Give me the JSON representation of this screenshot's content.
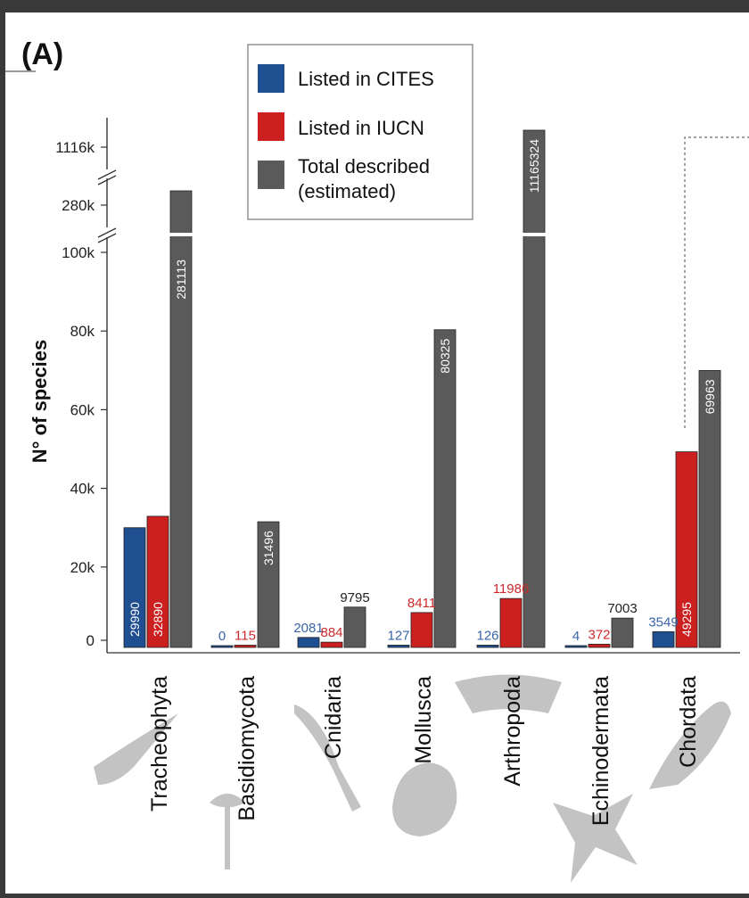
{
  "panel_label": "(A)",
  "colors": {
    "cites": "#1f4e91",
    "iucn": "#cc1f1f",
    "total": "#5a5a5a",
    "cites_text": "#3a64a8",
    "iucn_text": "#cc2a2a"
  },
  "legend": [
    {
      "key": "cites",
      "label": "Listed in CITES"
    },
    {
      "key": "iucn",
      "label": "Listed in IUCN"
    },
    {
      "key": "total",
      "label": "Total described",
      "label2": "(estimated)"
    }
  ],
  "chart_data": {
    "type": "bar",
    "ylabel": "N° of species",
    "y_ticks": [
      "0",
      "20k",
      "40k",
      "60k",
      "80k",
      "100k",
      "280k",
      "1116k"
    ],
    "ylim": [
      0,
      105000
    ],
    "axis_breaks": [
      "100k–280k",
      "280k–1116k"
    ],
    "categories": [
      "Tracheophyta",
      "Basidiomycota",
      "Cnidaria",
      "Mollusca",
      "Arthropoda",
      "Echinodermata",
      "Chordata"
    ],
    "series": [
      {
        "name": "Listed in CITES",
        "key": "cites",
        "values": [
          29990,
          0,
          2081,
          127,
          126,
          4,
          3549
        ]
      },
      {
        "name": "Listed in IUCN",
        "key": "iucn",
        "values": [
          32890,
          115,
          884,
          8411,
          11986,
          372,
          49295
        ]
      },
      {
        "name": "Total described (estimated)",
        "key": "total",
        "values": [
          281113,
          31496,
          9795,
          80325,
          11165324,
          7003,
          69963
        ]
      }
    ],
    "legend_position": "top-center"
  }
}
